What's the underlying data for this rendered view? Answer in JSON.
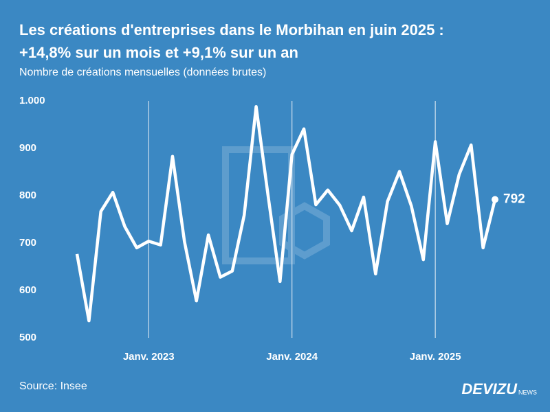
{
  "chart_data": {
    "type": "line",
    "title": [
      "Les créations d'entreprises dans le Morbihan en juin 2025 :",
      "+14,8% sur un mois et +9,1% sur un an"
    ],
    "subtitle": "Nombre de créations mensuelles (données brutes)",
    "source": "Source: Insee",
    "brand": {
      "name": "DEVIZU",
      "suffix": "NEWS"
    },
    "categories": [
      null,
      null,
      null,
      null,
      null,
      null,
      "Janv. 2023",
      null,
      null,
      null,
      null,
      null,
      null,
      null,
      null,
      null,
      null,
      null,
      "Janv. 2024",
      null,
      null,
      null,
      null,
      null,
      null,
      null,
      null,
      null,
      null,
      null,
      "Janv. 2025",
      null,
      null,
      null,
      null,
      null
    ],
    "series": [
      {
        "name": "Créations",
        "color": "#ffffff",
        "values": [
          677,
          536,
          767,
          807,
          735,
          690,
          704,
          696,
          883,
          703,
          578,
          717,
          628,
          641,
          759,
          988,
          800,
          619,
          887,
          941,
          781,
          812,
          780,
          726,
          797,
          635,
          788,
          851,
          778,
          665,
          914,
          741,
          845,
          907,
          690,
          792
        ]
      }
    ],
    "ylim": [
      500,
      1000
    ],
    "yticks": [
      500,
      600,
      700,
      800,
      900,
      {
        "value": 1000,
        "label": "1.000"
      }
    ],
    "grid": "x"
  }
}
